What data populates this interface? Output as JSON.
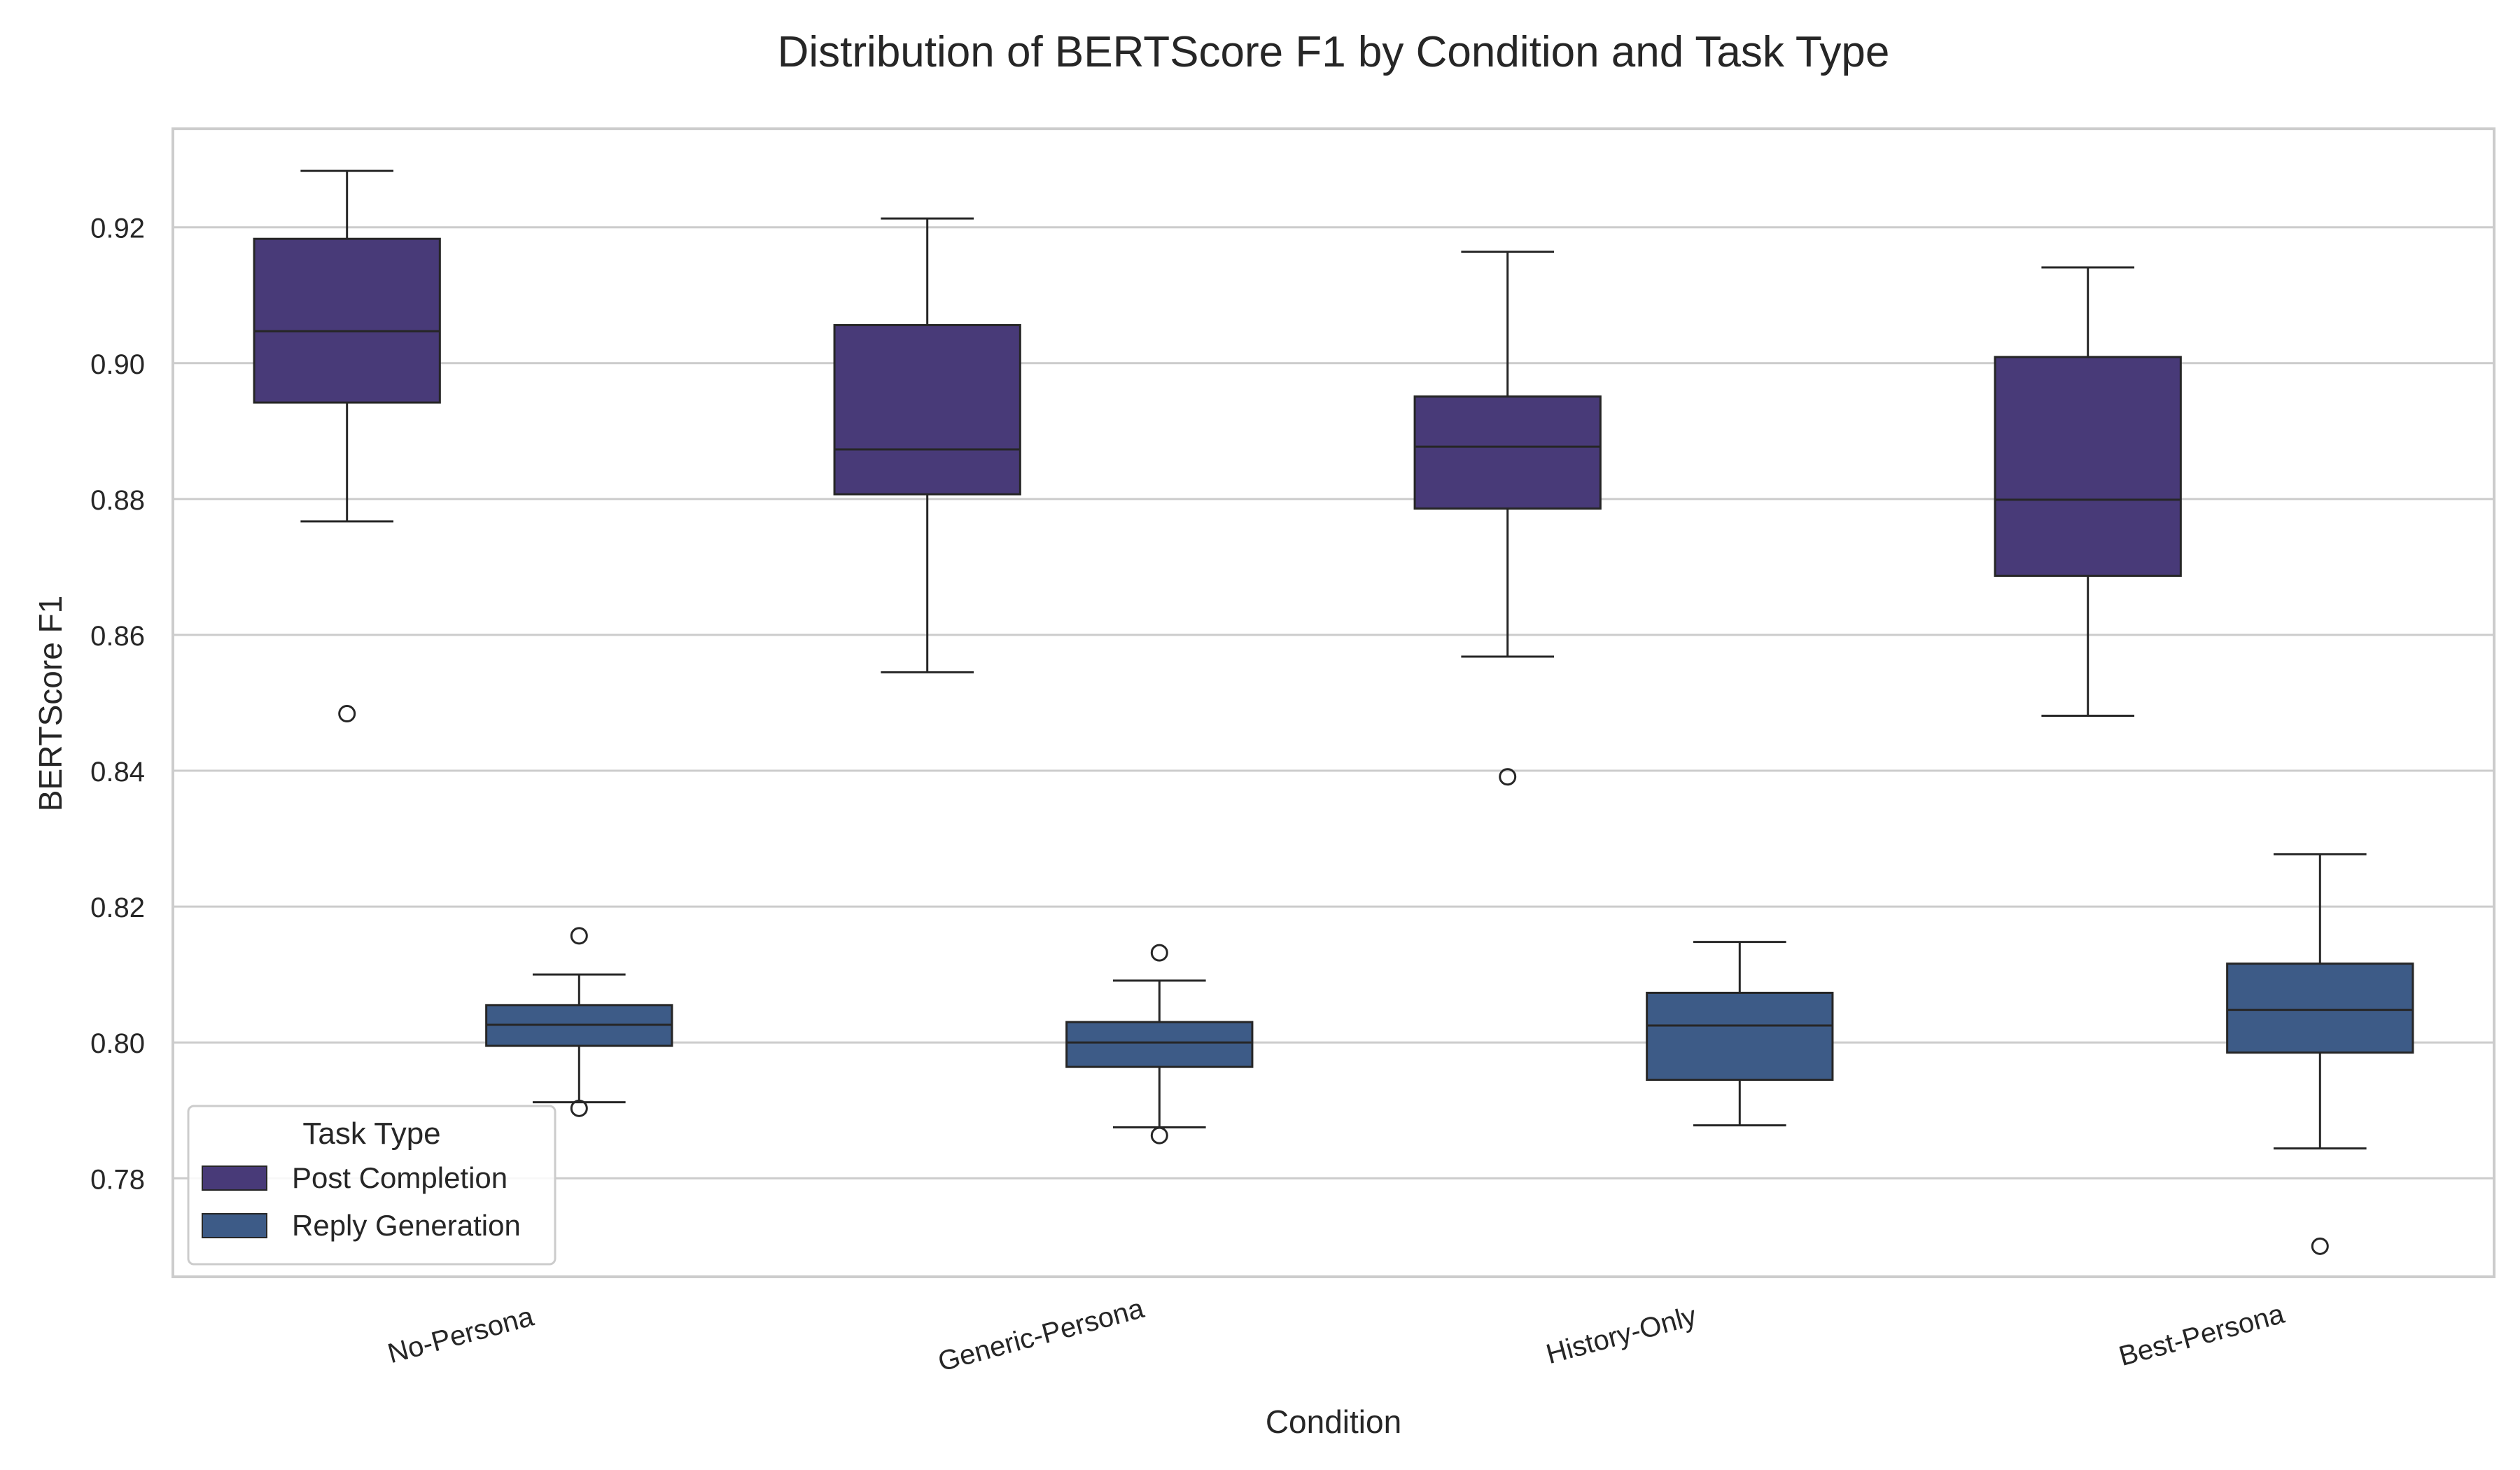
{
  "chart_data": {
    "type": "box",
    "title": "Distribution of BERTScore F1 by Condition and Task Type",
    "xlabel": "Condition",
    "ylabel": "BERTScore F1",
    "ylim": [
      0.7655,
      0.9345
    ],
    "yticks": [
      "0.78",
      "0.80",
      "0.82",
      "0.84",
      "0.86",
      "0.88",
      "0.90",
      "0.92"
    ],
    "categories": [
      "No-Persona",
      "Generic-Persona",
      "History-Only",
      "Best-Persona"
    ],
    "grid": "horizontal",
    "legend": {
      "title": "Task Type",
      "position": "lower-left"
    },
    "series": [
      {
        "name": "Post Completion",
        "color": "#483a78",
        "boxes": [
          {
            "whisker_low": 0.8767,
            "q1": 0.8942,
            "median": 0.9047,
            "q3": 0.9183,
            "whisker_high": 0.9283,
            "outliers": [
              0.8484
            ]
          },
          {
            "whisker_low": 0.8545,
            "q1": 0.8807,
            "median": 0.8873,
            "q3": 0.9056,
            "whisker_high": 0.9213,
            "outliers": []
          },
          {
            "whisker_low": 0.8568,
            "q1": 0.8786,
            "median": 0.8877,
            "q3": 0.8951,
            "whisker_high": 0.9164,
            "outliers": [
              0.8391
            ]
          },
          {
            "whisker_low": 0.8481,
            "q1": 0.8687,
            "median": 0.8799,
            "q3": 0.9009,
            "whisker_high": 0.9141,
            "outliers": []
          }
        ]
      },
      {
        "name": "Reply Generation",
        "color": "#3d5b87",
        "boxes": [
          {
            "whisker_low": 0.7912,
            "q1": 0.7995,
            "median": 0.8026,
            "q3": 0.8055,
            "whisker_high": 0.81,
            "outliers": [
              0.8157,
              0.7903
            ]
          },
          {
            "whisker_low": 0.7875,
            "q1": 0.7964,
            "median": 0.8,
            "q3": 0.803,
            "whisker_high": 0.8091,
            "outliers": [
              0.8132,
              0.7863
            ]
          },
          {
            "whisker_low": 0.7878,
            "q1": 0.7945,
            "median": 0.8025,
            "q3": 0.8073,
            "whisker_high": 0.8148,
            "outliers": []
          },
          {
            "whisker_low": 0.7844,
            "q1": 0.7985,
            "median": 0.8048,
            "q3": 0.8116,
            "whisker_high": 0.8277,
            "outliers": [
              0.77
            ]
          }
        ]
      }
    ]
  }
}
